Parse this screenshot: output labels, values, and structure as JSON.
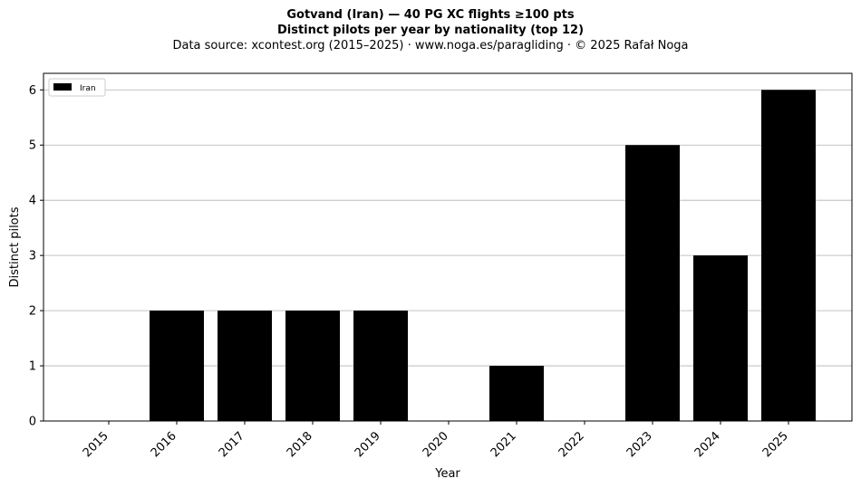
{
  "chart_data": {
    "type": "bar",
    "title_line1": "Gotvand (Iran)  —  40 PG XC flights ≥100 pts",
    "title_line2": "Distinct pilots per year by nationality (top 12)",
    "subtitle": "Data source: xcontest.org (2015–2025)  ·  www.noga.es/paragliding  ·  © 2025 Rafał Noga",
    "xlabel": "Year",
    "ylabel": "Distinct pilots",
    "categories": [
      "2015",
      "2016",
      "2017",
      "2018",
      "2019",
      "2020",
      "2021",
      "2022",
      "2023",
      "2024",
      "2025"
    ],
    "series": [
      {
        "name": "Iran",
        "color": "#000000",
        "values": [
          0,
          2,
          2,
          2,
          2,
          0,
          1,
          0,
          5,
          3,
          6
        ]
      }
    ],
    "ylim": [
      0,
      6.3
    ],
    "yticks": [
      0,
      1,
      2,
      3,
      4,
      5,
      6
    ],
    "grid": "horizontal",
    "legend": "top-left"
  }
}
